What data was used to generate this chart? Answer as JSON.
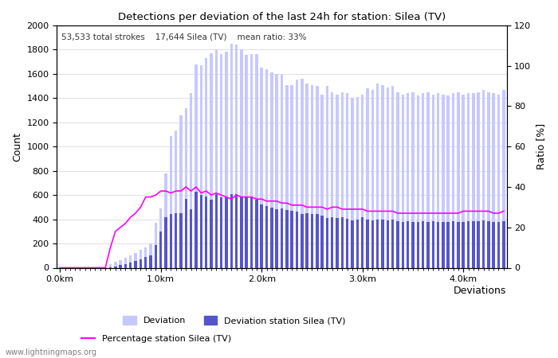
{
  "title": "Detections per deviation of the last 24h for station: Silea (TV)",
  "subtitle": "53,533 total strokes    17,644 Silea (TV)    mean ratio: 33%",
  "xlabel": "Deviations",
  "ylabel_left": "Count",
  "ylabel_right": "Ratio [%]",
  "watermark": "www.lightningmaps.org",
  "ylim_left": [
    0,
    2000
  ],
  "ylim_right": [
    0,
    120
  ],
  "yticks_left": [
    0,
    200,
    400,
    600,
    800,
    1000,
    1200,
    1400,
    1600,
    1800,
    2000
  ],
  "yticks_right": [
    0,
    20,
    40,
    60,
    80,
    100,
    120
  ],
  "xtick_labels": [
    "0.0km",
    "1.0km",
    "2.0km",
    "3.0km",
    "4.0km"
  ],
  "xtick_positions": [
    0,
    20,
    40,
    60,
    80
  ],
  "bar_width": 0.55,
  "color_deviation": "#c8c8ff",
  "color_station": "#5555cc",
  "color_ratio": "#ff00ff",
  "deviation_total": [
    2,
    3,
    4,
    5,
    3,
    2,
    3,
    4,
    5,
    6,
    30,
    50,
    60,
    80,
    100,
    120,
    150,
    170,
    200,
    370,
    490,
    780,
    1085,
    1130,
    1260,
    1315,
    1440,
    1680,
    1670,
    1730,
    1770,
    1800,
    1760,
    1780,
    1850,
    1840,
    1800,
    1755,
    1760,
    1760,
    1650,
    1640,
    1610,
    1600,
    1590,
    1510,
    1510,
    1550,
    1560,
    1520,
    1510,
    1500,
    1430,
    1500,
    1450,
    1430,
    1450,
    1440,
    1400,
    1410,
    1430,
    1480,
    1470,
    1520,
    1510,
    1490,
    1500,
    1450,
    1430,
    1440,
    1450,
    1420,
    1440,
    1450,
    1430,
    1440,
    1430,
    1420,
    1440,
    1450,
    1430,
    1440,
    1440,
    1450,
    1470,
    1450,
    1440,
    1430,
    1470
  ],
  "deviation_station": [
    0,
    0,
    0,
    0,
    0,
    0,
    0,
    0,
    0,
    0,
    5,
    10,
    20,
    30,
    40,
    55,
    70,
    90,
    100,
    190,
    300,
    420,
    445,
    450,
    450,
    565,
    485,
    630,
    600,
    590,
    560,
    610,
    580,
    580,
    610,
    610,
    590,
    590,
    590,
    560,
    520,
    510,
    495,
    480,
    490,
    475,
    470,
    460,
    445,
    450,
    440,
    440,
    430,
    410,
    420,
    410,
    420,
    405,
    390,
    400,
    415,
    400,
    390,
    400,
    400,
    390,
    395,
    385,
    380,
    385,
    380,
    375,
    385,
    380,
    385,
    380,
    380,
    375,
    385,
    380,
    380,
    385,
    385,
    385,
    390,
    385,
    380,
    375,
    385
  ],
  "ratio_pct": [
    0,
    0,
    0,
    0,
    0,
    0,
    0,
    0,
    0,
    0,
    10,
    18,
    20,
    22,
    25,
    27,
    30,
    35,
    35,
    36,
    38,
    38,
    37,
    38,
    38,
    40,
    38,
    40,
    37,
    38,
    36,
    37,
    36,
    35,
    34,
    36,
    35,
    35,
    35,
    34,
    34,
    33,
    33,
    33,
    32,
    32,
    31,
    31,
    31,
    30,
    30,
    30,
    30,
    29,
    30,
    30,
    29,
    29,
    29,
    29,
    29,
    28,
    28,
    28,
    28,
    28,
    28,
    27,
    27,
    27,
    27,
    27,
    27,
    27,
    27,
    27,
    27,
    27,
    27,
    27,
    28,
    28,
    28,
    28,
    28,
    28,
    27,
    27,
    28
  ]
}
